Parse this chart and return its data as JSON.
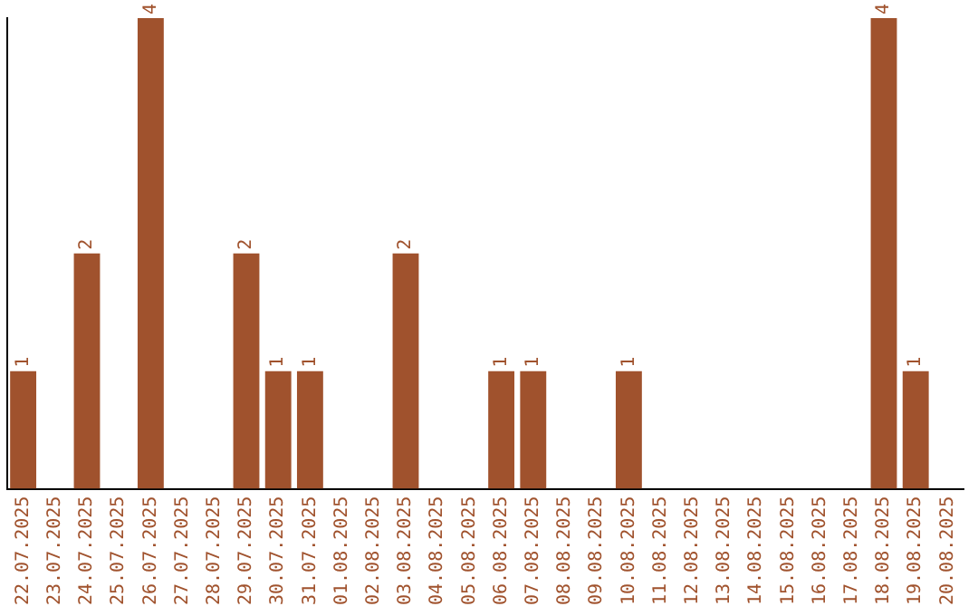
{
  "chart_data": {
    "type": "bar",
    "categories": [
      "22.07.2025",
      "23.07.2025",
      "24.07.2025",
      "25.07.2025",
      "26.07.2025",
      "27.07.2025",
      "28.07.2025",
      "29.07.2025",
      "30.07.2025",
      "31.07.2025",
      "01.08.2025",
      "02.08.2025",
      "03.08.2025",
      "04.08.2025",
      "05.08.2025",
      "06.08.2025",
      "07.08.2025",
      "08.08.2025",
      "09.08.2025",
      "10.08.2025",
      "11.08.2025",
      "12.08.2025",
      "13.08.2025",
      "14.08.2025",
      "15.08.2025",
      "16.08.2025",
      "17.08.2025",
      "18.08.2025",
      "19.08.2025",
      "20.08.2025"
    ],
    "values": [
      1,
      null,
      2,
      null,
      4,
      null,
      null,
      2,
      1,
      1,
      null,
      null,
      2,
      null,
      null,
      1,
      1,
      null,
      null,
      1,
      null,
      null,
      null,
      null,
      null,
      null,
      null,
      4,
      1,
      null
    ],
    "color": "#a0522d",
    "data_labels": true,
    "grid": false,
    "legend": false
  }
}
